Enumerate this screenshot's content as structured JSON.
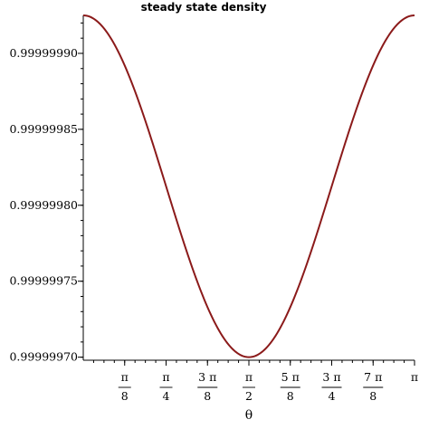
{
  "chart_data": {
    "type": "line",
    "title": "steady state density",
    "xlabel": "θ",
    "ylabel": "",
    "xlim": [
      0,
      3.14159265
    ],
    "ylim": [
      0.999999698,
      0.999999925
    ],
    "x_ticks": [
      {
        "value": 0.39269908,
        "num": "π",
        "den": "8"
      },
      {
        "value": 0.78539816,
        "num": "π",
        "den": "4"
      },
      {
        "value": 1.17809725,
        "num": "3 π",
        "den": "8"
      },
      {
        "value": 1.57079633,
        "num": "π",
        "den": "2"
      },
      {
        "value": 1.96349541,
        "num": "5 π",
        "den": "8"
      },
      {
        "value": 2.35619449,
        "num": "3 π",
        "den": "4"
      },
      {
        "value": 2.74889357,
        "num": "7 π",
        "den": "8"
      },
      {
        "value": 3.14159265,
        "num": "π",
        "den": ""
      }
    ],
    "y_ticks": [
      {
        "value": 0.9999997,
        "label": "0.99999970"
      },
      {
        "value": 0.99999975,
        "label": "0.99999975"
      },
      {
        "value": 0.9999998,
        "label": "0.99999980"
      },
      {
        "value": 0.99999985,
        "label": "0.99999985"
      },
      {
        "value": 0.9999999,
        "label": "0.99999990"
      }
    ],
    "series": [
      {
        "color": "#8b1a1a",
        "x": [
          0,
          0.3927,
          0.7854,
          1.1781,
          1.5708,
          1.9635,
          2.3562,
          2.7489,
          3.1416
        ],
        "y": [
          0.999999925,
          0.999999892,
          0.999999812,
          0.999999733,
          0.9999997,
          0.999999733,
          0.999999812,
          0.999999892,
          0.999999925
        ]
      }
    ],
    "grid": false
  }
}
